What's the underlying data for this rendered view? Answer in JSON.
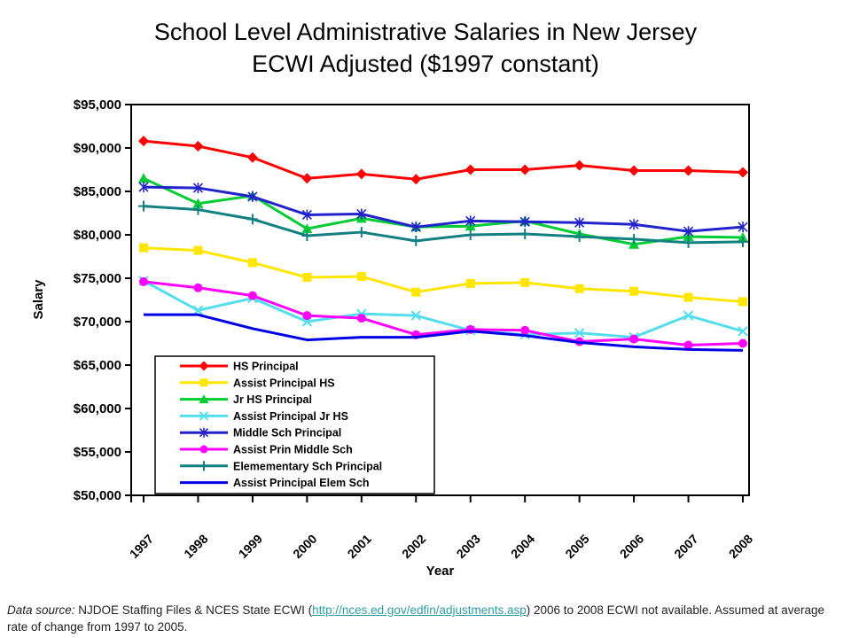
{
  "title": {
    "line1": "School Level Administrative Salaries in New Jersey",
    "line2": "ECWI Adjusted ($1997 constant)"
  },
  "chart_data": {
    "type": "line",
    "x": [
      1997,
      1998,
      1999,
      2000,
      2001,
      2002,
      2003,
      2004,
      2005,
      2006,
      2007,
      2008
    ],
    "xlabel": "Year",
    "ylabel": "Salary",
    "ylim": [
      50000,
      95000
    ],
    "ytick_step": 5000,
    "ytick_labels": [
      "$50,000",
      "$55,000",
      "$60,000",
      "$65,000",
      "$70,000",
      "$75,000",
      "$80,000",
      "$85,000",
      "$90,000",
      "$95,000"
    ],
    "grid": false,
    "legend_position": "inside-lower-left",
    "series": [
      {
        "name": "HS Principal",
        "color": "#FF0000",
        "marker": "diamond",
        "values": [
          90800,
          90200,
          88900,
          86500,
          87000,
          86400,
          87500,
          87500,
          88000,
          87400,
          87400,
          87200
        ]
      },
      {
        "name": "Assist Principal HS",
        "color": "#FFE600",
        "marker": "square",
        "values": [
          78500,
          78200,
          76800,
          75100,
          75200,
          73400,
          74400,
          74500,
          73800,
          73500,
          72800,
          72300
        ]
      },
      {
        "name": "Jr HS Principal",
        "color": "#00CC33",
        "marker": "triangle",
        "values": [
          86500,
          83600,
          84500,
          80700,
          81900,
          80900,
          81000,
          81600,
          80100,
          78900,
          79800,
          79700
        ]
      },
      {
        "name": "Assist Principal Jr HS",
        "color": "#55DDEE",
        "marker": "x",
        "values": [
          74700,
          71300,
          72700,
          70000,
          70900,
          70700,
          69000,
          68500,
          68700,
          68200,
          70700,
          68900
        ]
      },
      {
        "name": "Middle Sch Principal",
        "color": "#2222CC",
        "marker": "star",
        "values": [
          85500,
          85400,
          84400,
          82300,
          82400,
          80900,
          81600,
          81500,
          81400,
          81200,
          80400,
          80900
        ]
      },
      {
        "name": "Assist Prin Middle Sch",
        "color": "#FF00FF",
        "marker": "circle",
        "values": [
          74600,
          73900,
          73000,
          70700,
          70400,
          68500,
          69100,
          69000,
          67700,
          68000,
          67300,
          67500
        ]
      },
      {
        "name": "Elemementary Sch Principal",
        "color": "#118080",
        "marker": "plus",
        "values": [
          83300,
          82900,
          81800,
          79900,
          80300,
          79300,
          80000,
          80100,
          79800,
          79500,
          79100,
          79200
        ]
      },
      {
        "name": "Assist Principal Elem Sch",
        "color": "#0000E6",
        "marker": "none",
        "values": [
          70800,
          70800,
          69200,
          67900,
          68200,
          68200,
          68900,
          68400,
          67600,
          67100,
          66800,
          66700
        ]
      }
    ]
  },
  "footnote": {
    "prefix_italic": "Data source:",
    "pre_link": " NJDOE Staffing Files & NCES State ECWI (",
    "link": "http://nces.ed.gov/edfin/adjustments.asp",
    "post_link": ") 2006 to 2008 ECWI not available. Assumed at average rate of change from 1997 to 2005.",
    "link_color": "#2F9DA3"
  }
}
